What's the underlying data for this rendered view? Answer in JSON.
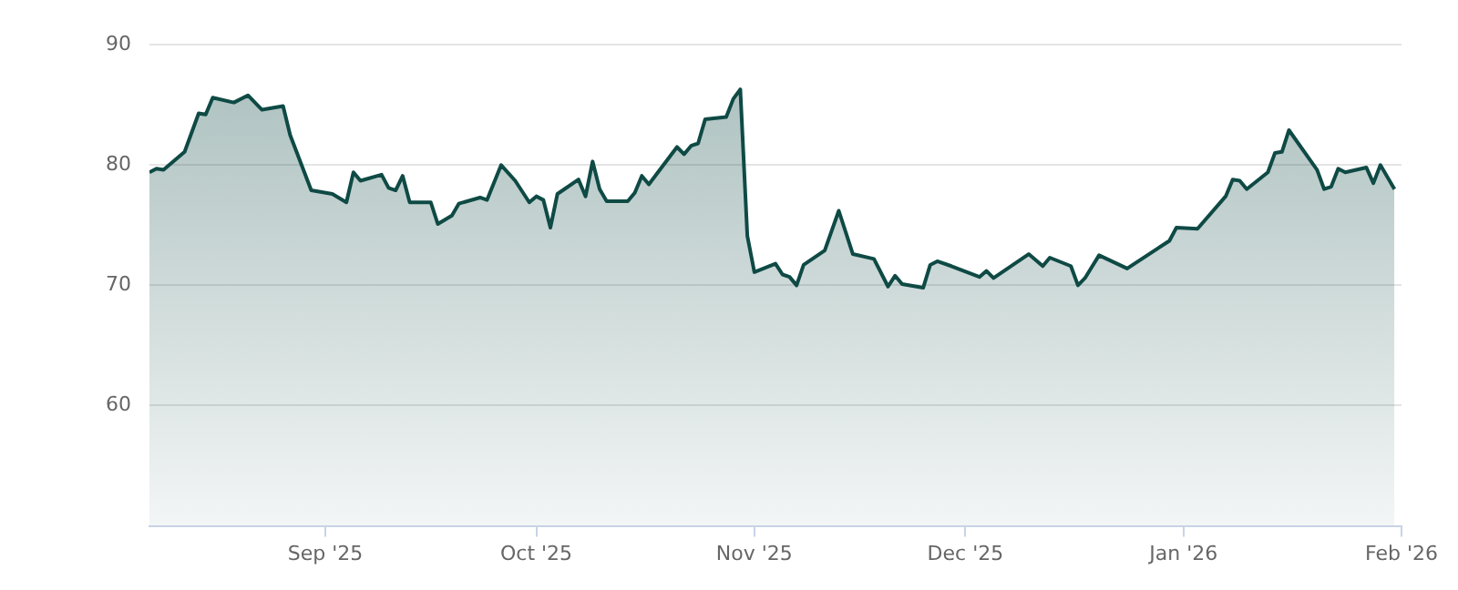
{
  "chart_data": {
    "type": "area",
    "x": [
      "2025-08-07",
      "2025-08-08",
      "2025-08-09",
      "2025-08-12",
      "2025-08-14",
      "2025-08-15",
      "2025-08-16",
      "2025-08-19",
      "2025-08-21",
      "2025-08-23",
      "2025-08-26",
      "2025-08-27",
      "2025-08-30",
      "2025-09-02",
      "2025-09-04",
      "2025-09-05",
      "2025-09-06",
      "2025-09-09",
      "2025-09-10",
      "2025-09-11",
      "2025-09-12",
      "2025-09-13",
      "2025-09-16",
      "2025-09-17",
      "2025-09-19",
      "2025-09-20",
      "2025-09-23",
      "2025-09-24",
      "2025-09-26",
      "2025-09-28",
      "2025-09-30",
      "2025-10-01",
      "2025-10-02",
      "2025-10-03",
      "2025-10-04",
      "2025-10-07",
      "2025-10-08",
      "2025-10-09",
      "2025-10-10",
      "2025-10-11",
      "2025-10-14",
      "2025-10-15",
      "2025-10-16",
      "2025-10-17",
      "2025-10-21",
      "2025-10-22",
      "2025-10-23",
      "2025-10-24",
      "2025-10-25",
      "2025-10-28",
      "2025-10-29",
      "2025-10-30",
      "2025-10-31",
      "2025-11-01",
      "2025-11-04",
      "2025-11-05",
      "2025-11-06",
      "2025-11-07",
      "2025-11-08",
      "2025-11-11",
      "2025-11-13",
      "2025-11-15",
      "2025-11-18",
      "2025-11-20",
      "2025-11-21",
      "2025-11-22",
      "2025-11-25",
      "2025-11-26",
      "2025-11-27",
      "2025-11-29",
      "2025-12-03",
      "2025-12-04",
      "2025-12-05",
      "2025-12-10",
      "2025-12-12",
      "2025-12-13",
      "2025-12-16",
      "2025-12-17",
      "2025-12-18",
      "2025-12-20",
      "2025-12-24",
      "2025-12-30",
      "2025-12-31",
      "2026-01-03",
      "2026-01-07",
      "2026-01-08",
      "2026-01-09",
      "2026-01-10",
      "2026-01-13",
      "2026-01-14",
      "2026-01-15",
      "2026-01-16",
      "2026-01-20",
      "2026-01-21",
      "2026-01-22",
      "2026-01-23",
      "2026-01-24",
      "2026-01-27",
      "2026-01-28",
      "2026-01-29",
      "2026-01-31"
    ],
    "series": [
      {
        "color": "#0f4a45",
        "values": [
          79.4,
          79.7,
          79.6,
          81.1,
          84.3,
          84.2,
          85.6,
          85.2,
          85.8,
          84.6,
          84.9,
          82.5,
          77.9,
          77.6,
          76.9,
          79.4,
          78.7,
          79.2,
          78.1,
          77.9,
          79.1,
          76.9,
          76.9,
          75.1,
          75.8,
          76.8,
          77.3,
          77.1,
          80.0,
          78.7,
          76.9,
          77.4,
          77.1,
          74.8,
          77.6,
          78.8,
          77.4,
          80.3,
          78.0,
          77.0,
          77.0,
          77.7,
          79.1,
          78.4,
          81.5,
          80.9,
          81.6,
          81.8,
          83.8,
          84.0,
          85.5,
          86.3,
          74.1,
          71.1,
          71.8,
          70.9,
          70.7,
          70.0,
          71.7,
          72.9,
          76.2,
          72.6,
          72.2,
          69.9,
          70.8,
          70.1,
          69.8,
          71.7,
          72.0,
          71.6,
          70.7,
          71.2,
          70.6,
          72.6,
          71.6,
          72.3,
          71.6,
          70.0,
          70.6,
          72.5,
          71.4,
          73.7,
          74.8,
          74.7,
          77.4,
          78.8,
          78.7,
          78.0,
          79.4,
          81.0,
          81.1,
          82.9,
          79.6,
          78.0,
          78.2,
          79.7,
          79.4,
          79.8,
          78.5,
          80.0,
          78.0
        ]
      }
    ],
    "xlim": [
      "2025-08-07",
      "2026-02-01"
    ],
    "xticks": [
      {
        "value": "2025-09-01",
        "label": "Sep '25"
      },
      {
        "value": "2025-10-01",
        "label": "Oct '25"
      },
      {
        "value": "2025-11-01",
        "label": "Nov '25"
      },
      {
        "value": "2025-12-01",
        "label": "Dec '25"
      },
      {
        "value": "2026-01-01",
        "label": "Jan '26"
      },
      {
        "value": "2026-02-01",
        "label": "Feb '26"
      }
    ],
    "ylim": [
      50,
      90
    ],
    "yticks": [
      60,
      70,
      80,
      90
    ],
    "grid": "y",
    "legend": false,
    "marker": "none",
    "line_style": "solid"
  }
}
